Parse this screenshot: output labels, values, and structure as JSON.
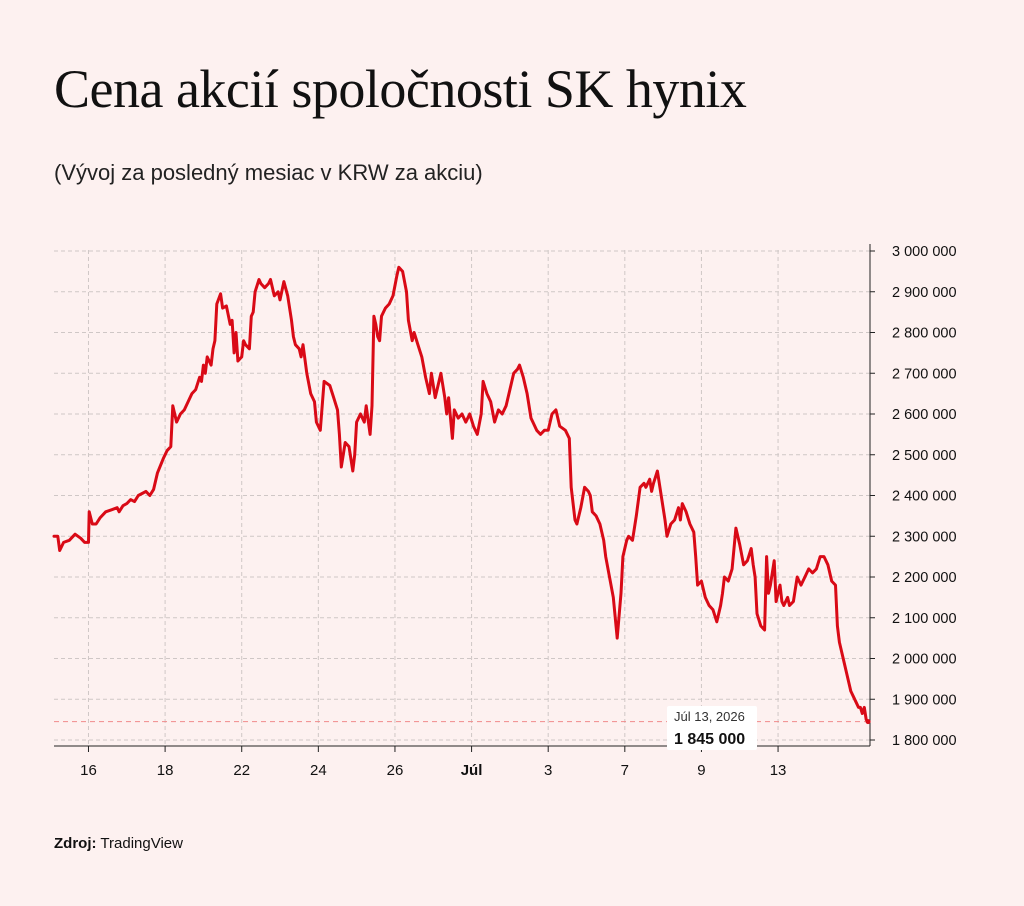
{
  "title": "Cena akcií spoločnosti SK hynix",
  "subtitle": "(Vývoj za posledný mesiac v KRW za akciu)",
  "source": {
    "label": "Zdroj:",
    "value": "TradingView"
  },
  "colors": {
    "line": "#d90a16",
    "background": "#fdf1f0",
    "grid": "#cfc7c6",
    "last_price_line": "#f08a8a"
  },
  "tooltip": {
    "date": "Júl 13, 2026",
    "value": "1 845 000"
  },
  "chart_data": {
    "type": "line",
    "title": "Cena akcií spoločnosti SK hynix",
    "subtitle": "(Vývoj za posledný mesiac v KRW za akciu)",
    "xlabel": "",
    "ylabel": "",
    "ylim": [
      1770000,
      3010000
    ],
    "y_ticks": [
      1800000,
      1900000,
      2000000,
      2100000,
      2200000,
      2300000,
      2400000,
      2500000,
      2600000,
      2700000,
      2800000,
      2900000,
      3000000
    ],
    "y_tick_labels": [
      "1 800 000",
      "1 900 000",
      "2 000 000",
      "2 100 000",
      "2 200 000",
      "2 300 000",
      "2 400 000",
      "2 500 000",
      "2 600 000",
      "2 700 000",
      "2 800 000",
      "2 900 000",
      "3 000 000"
    ],
    "x_range": [
      15.1,
      36.4
    ],
    "x_ticks": [
      16,
      18,
      20,
      22,
      24,
      26,
      28,
      30,
      32,
      34
    ],
    "x_tick_labels": [
      "16",
      "18",
      "22",
      "24",
      "26",
      "Júl",
      "3",
      "7",
      "9",
      "13"
    ],
    "x_tick_bold": [
      false,
      false,
      false,
      false,
      false,
      true,
      false,
      false,
      false,
      false
    ],
    "grid": true,
    "y_axis_position": "right",
    "last_value": 1845000,
    "series": [
      {
        "points": [
          [
            15.1,
            2300000
          ],
          [
            15.2,
            2300000
          ],
          [
            15.25,
            2265000
          ],
          [
            15.35,
            2285000
          ],
          [
            15.5,
            2290000
          ],
          [
            15.65,
            2305000
          ],
          [
            15.8,
            2295000
          ],
          [
            15.9,
            2285000
          ],
          [
            16.0,
            2285000
          ],
          [
            16.02,
            2360000
          ],
          [
            16.1,
            2330000
          ],
          [
            16.2,
            2330000
          ],
          [
            16.3,
            2345000
          ],
          [
            16.45,
            2360000
          ],
          [
            16.6,
            2365000
          ],
          [
            16.75,
            2370000
          ],
          [
            16.8,
            2360000
          ],
          [
            16.9,
            2375000
          ],
          [
            17.0,
            2380000
          ],
          [
            17.1,
            2390000
          ],
          [
            17.2,
            2385000
          ],
          [
            17.3,
            2400000
          ],
          [
            17.4,
            2405000
          ],
          [
            17.5,
            2410000
          ],
          [
            17.6,
            2400000
          ],
          [
            17.7,
            2415000
          ],
          [
            17.8,
            2455000
          ],
          [
            17.95,
            2490000
          ],
          [
            18.05,
            2510000
          ],
          [
            18.15,
            2520000
          ],
          [
            18.2,
            2620000
          ],
          [
            18.3,
            2580000
          ],
          [
            18.4,
            2600000
          ],
          [
            18.5,
            2610000
          ],
          [
            18.6,
            2630000
          ],
          [
            18.7,
            2650000
          ],
          [
            18.8,
            2660000
          ],
          [
            18.9,
            2690000
          ],
          [
            18.95,
            2680000
          ],
          [
            19.0,
            2720000
          ],
          [
            19.05,
            2700000
          ],
          [
            19.1,
            2740000
          ],
          [
            19.2,
            2720000
          ],
          [
            19.25,
            2760000
          ],
          [
            19.3,
            2780000
          ],
          [
            19.35,
            2870000
          ],
          [
            19.45,
            2895000
          ],
          [
            19.5,
            2860000
          ],
          [
            19.6,
            2865000
          ],
          [
            19.7,
            2820000
          ],
          [
            19.75,
            2830000
          ],
          [
            19.8,
            2750000
          ],
          [
            19.85,
            2800000
          ],
          [
            19.9,
            2730000
          ],
          [
            20.0,
            2740000
          ],
          [
            20.05,
            2780000
          ],
          [
            20.1,
            2770000
          ],
          [
            20.2,
            2760000
          ],
          [
            20.25,
            2840000
          ],
          [
            20.3,
            2850000
          ],
          [
            20.35,
            2900000
          ],
          [
            20.45,
            2930000
          ],
          [
            20.5,
            2920000
          ],
          [
            20.6,
            2910000
          ],
          [
            20.7,
            2920000
          ],
          [
            20.75,
            2930000
          ],
          [
            20.85,
            2890000
          ],
          [
            20.95,
            2900000
          ],
          [
            21.0,
            2880000
          ],
          [
            21.1,
            2925000
          ],
          [
            21.2,
            2890000
          ],
          [
            21.3,
            2830000
          ],
          [
            21.35,
            2790000
          ],
          [
            21.4,
            2770000
          ],
          [
            21.5,
            2760000
          ],
          [
            21.55,
            2740000
          ],
          [
            21.6,
            2770000
          ],
          [
            21.7,
            2700000
          ],
          [
            21.8,
            2650000
          ],
          [
            21.9,
            2630000
          ],
          [
            21.95,
            2580000
          ],
          [
            22.05,
            2560000
          ],
          [
            22.15,
            2680000
          ],
          [
            22.3,
            2670000
          ],
          [
            22.4,
            2640000
          ],
          [
            22.5,
            2610000
          ],
          [
            22.55,
            2550000
          ],
          [
            22.6,
            2470000
          ],
          [
            22.7,
            2530000
          ],
          [
            22.8,
            2520000
          ],
          [
            22.9,
            2460000
          ],
          [
            22.95,
            2500000
          ],
          [
            23.0,
            2580000
          ],
          [
            23.1,
            2600000
          ],
          [
            23.2,
            2580000
          ],
          [
            23.25,
            2620000
          ],
          [
            23.35,
            2550000
          ],
          [
            23.4,
            2620000
          ],
          [
            23.45,
            2840000
          ],
          [
            23.5,
            2820000
          ],
          [
            23.55,
            2790000
          ],
          [
            23.6,
            2780000
          ],
          [
            23.65,
            2840000
          ],
          [
            23.75,
            2860000
          ],
          [
            23.85,
            2870000
          ],
          [
            23.95,
            2890000
          ],
          [
            24.05,
            2940000
          ],
          [
            24.1,
            2960000
          ],
          [
            24.2,
            2950000
          ],
          [
            24.3,
            2900000
          ],
          [
            24.35,
            2830000
          ],
          [
            24.45,
            2780000
          ],
          [
            24.5,
            2800000
          ],
          [
            24.6,
            2770000
          ],
          [
            24.7,
            2740000
          ],
          [
            24.8,
            2690000
          ],
          [
            24.9,
            2650000
          ],
          [
            24.95,
            2700000
          ],
          [
            25.05,
            2640000
          ],
          [
            25.15,
            2680000
          ],
          [
            25.2,
            2700000
          ],
          [
            25.3,
            2640000
          ],
          [
            25.35,
            2600000
          ],
          [
            25.4,
            2640000
          ],
          [
            25.5,
            2540000
          ],
          [
            25.55,
            2610000
          ],
          [
            25.65,
            2590000
          ],
          [
            25.75,
            2600000
          ],
          [
            25.85,
            2580000
          ],
          [
            25.95,
            2600000
          ],
          [
            26.05,
            2570000
          ],
          [
            26.15,
            2550000
          ],
          [
            26.25,
            2600000
          ],
          [
            26.3,
            2680000
          ],
          [
            26.4,
            2650000
          ],
          [
            26.5,
            2630000
          ],
          [
            26.6,
            2580000
          ],
          [
            26.7,
            2610000
          ],
          [
            26.8,
            2600000
          ],
          [
            26.9,
            2620000
          ],
          [
            27.0,
            2660000
          ],
          [
            27.1,
            2700000
          ],
          [
            27.2,
            2710000
          ],
          [
            27.25,
            2720000
          ],
          [
            27.35,
            2690000
          ],
          [
            27.45,
            2650000
          ],
          [
            27.55,
            2590000
          ],
          [
            27.6,
            2580000
          ],
          [
            27.7,
            2560000
          ],
          [
            27.8,
            2550000
          ],
          [
            27.9,
            2560000
          ],
          [
            28.0,
            2560000
          ],
          [
            28.1,
            2600000
          ],
          [
            28.2,
            2610000
          ],
          [
            28.3,
            2570000
          ],
          [
            28.45,
            2560000
          ],
          [
            28.55,
            2540000
          ],
          [
            28.6,
            2420000
          ],
          [
            28.7,
            2340000
          ],
          [
            28.75,
            2330000
          ],
          [
            28.85,
            2370000
          ],
          [
            28.95,
            2420000
          ],
          [
            29.05,
            2410000
          ],
          [
            29.1,
            2400000
          ],
          [
            29.15,
            2360000
          ],
          [
            29.25,
            2350000
          ],
          [
            29.35,
            2330000
          ],
          [
            29.45,
            2290000
          ],
          [
            29.5,
            2250000
          ],
          [
            29.6,
            2200000
          ],
          [
            29.7,
            2150000
          ],
          [
            29.8,
            2050000
          ],
          [
            29.9,
            2160000
          ],
          [
            29.95,
            2250000
          ],
          [
            30.05,
            2290000
          ],
          [
            30.1,
            2300000
          ],
          [
            30.2,
            2290000
          ],
          [
            30.3,
            2350000
          ],
          [
            30.4,
            2420000
          ],
          [
            30.5,
            2430000
          ],
          [
            30.55,
            2420000
          ],
          [
            30.65,
            2440000
          ],
          [
            30.7,
            2410000
          ],
          [
            30.75,
            2430000
          ],
          [
            30.85,
            2460000
          ],
          [
            30.95,
            2400000
          ],
          [
            31.05,
            2340000
          ],
          [
            31.1,
            2300000
          ],
          [
            31.2,
            2330000
          ],
          [
            31.3,
            2340000
          ],
          [
            31.4,
            2370000
          ],
          [
            31.45,
            2340000
          ],
          [
            31.5,
            2380000
          ],
          [
            31.6,
            2360000
          ],
          [
            31.7,
            2330000
          ],
          [
            31.8,
            2310000
          ],
          [
            31.85,
            2250000
          ],
          [
            31.9,
            2180000
          ],
          [
            32.0,
            2190000
          ],
          [
            32.1,
            2150000
          ],
          [
            32.2,
            2130000
          ],
          [
            32.3,
            2120000
          ],
          [
            32.4,
            2090000
          ],
          [
            32.5,
            2130000
          ],
          [
            32.55,
            2160000
          ],
          [
            32.6,
            2200000
          ],
          [
            32.7,
            2190000
          ],
          [
            32.8,
            2220000
          ],
          [
            32.9,
            2320000
          ],
          [
            33.0,
            2280000
          ],
          [
            33.1,
            2230000
          ],
          [
            33.2,
            2240000
          ],
          [
            33.3,
            2270000
          ],
          [
            33.35,
            2230000
          ],
          [
            33.4,
            2200000
          ],
          [
            33.45,
            2110000
          ],
          [
            33.55,
            2080000
          ],
          [
            33.65,
            2070000
          ],
          [
            33.7,
            2250000
          ],
          [
            33.75,
            2160000
          ],
          [
            33.8,
            2180000
          ],
          [
            33.9,
            2240000
          ],
          [
            33.95,
            2140000
          ],
          [
            34.05,
            2180000
          ],
          [
            34.1,
            2140000
          ],
          [
            34.15,
            2130000
          ],
          [
            34.25,
            2150000
          ],
          [
            34.3,
            2130000
          ],
          [
            34.4,
            2140000
          ],
          [
            34.5,
            2200000
          ],
          [
            34.6,
            2180000
          ],
          [
            34.7,
            2200000
          ],
          [
            34.8,
            2220000
          ],
          [
            34.9,
            2210000
          ],
          [
            35.0,
            2220000
          ],
          [
            35.1,
            2250000
          ],
          [
            35.2,
            2250000
          ],
          [
            35.3,
            2230000
          ],
          [
            35.4,
            2190000
          ],
          [
            35.5,
            2180000
          ],
          [
            35.55,
            2080000
          ],
          [
            35.6,
            2040000
          ],
          [
            35.7,
            2000000
          ],
          [
            35.8,
            1960000
          ],
          [
            35.9,
            1920000
          ],
          [
            36.0,
            1900000
          ],
          [
            36.05,
            1890000
          ],
          [
            36.1,
            1880000
          ],
          [
            36.15,
            1880000
          ],
          [
            36.2,
            1865000
          ],
          [
            36.25,
            1880000
          ],
          [
            36.3,
            1850000
          ],
          [
            36.35,
            1845000
          ]
        ]
      }
    ]
  }
}
